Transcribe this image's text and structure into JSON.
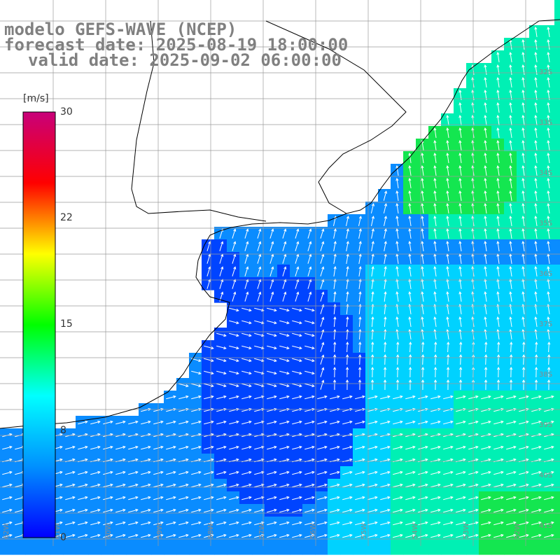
{
  "title": {
    "line1": "modelo GEFS-WAVE (NCEP)",
    "line2": "forecast date: 2025-08-19 18:00:00",
    "line3": "valid date: 2025-09-02 06:00:00"
  },
  "colorbar": {
    "unit": "[m/s]",
    "tick_labels": [
      "30",
      "22",
      "15",
      "8",
      "0"
    ],
    "tick_values": [
      30,
      22,
      15,
      8,
      0
    ],
    "colors": [
      "#0000ff",
      "#0090ff",
      "#00ffff",
      "#00ff00",
      "#ffff00",
      "#ff0000",
      "#c8007a"
    ],
    "range": [
      0,
      30
    ]
  },
  "map": {
    "variable": "wind speed and direction",
    "lat_labels": [
      "32S",
      "33S",
      "34S",
      "35S",
      "36S",
      "37S",
      "38S",
      "39S",
      "40S",
      "41S"
    ],
    "lon_labels": [
      "62W",
      "61W",
      "60W",
      "59W",
      "58W",
      "57W",
      "56W",
      "55W",
      "54W",
      "53W",
      "52W"
    ],
    "ocean_colors": {
      "calm": "#0044ff",
      "low": "#0a8cff",
      "mid": "#00d2ff",
      "high": "#00f0b4",
      "strong": "#14e650"
    },
    "coast_color": "#000000",
    "grid_color": "#9a9a9a",
    "land_color": "#ffffff",
    "arrow_color": "#ffffff"
  }
}
